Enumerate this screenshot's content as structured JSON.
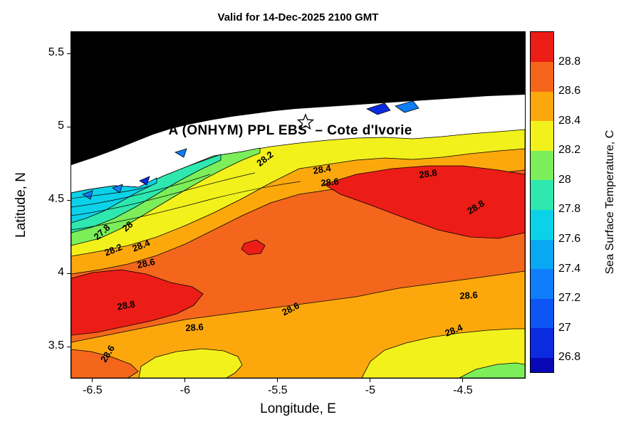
{
  "palette": {
    "land": "#000000",
    "no_data": "#ffffff",
    "band_27_0": "#0A2BE0",
    "band_27_2": "#0E7EFB",
    "band_27_6": "#0BD2E8",
    "band_27_8": "#2EE8B0",
    "band_28_0": "#7BEE5A",
    "band_28_2": "#F2F11C",
    "band_28_4": "#FCA80D",
    "band_28_6": "#F4661C",
    "band_28_8": "#EC1C17"
  },
  "chart_data": {
    "type": "heatmap",
    "variant": "filled_contour_map",
    "title": "Valid for 14-Dec-2025 2100 GMT",
    "xlabel": "Longitude, E",
    "ylabel": "Latitude, N",
    "xlim": [
      -6.615,
      -4.165
    ],
    "ylim": [
      3.287,
      5.646
    ],
    "grid": false,
    "x_ticks": [
      {
        "value": -6.5,
        "label": "-6.5"
      },
      {
        "value": -6.0,
        "label": "-6"
      },
      {
        "value": -5.5,
        "label": "-5.5"
      },
      {
        "value": -5.0,
        "label": "-5"
      },
      {
        "value": -4.5,
        "label": "-4.5"
      }
    ],
    "y_ticks": [
      {
        "value": 5.5,
        "label": "5.5"
      },
      {
        "value": 5.0,
        "label": "5"
      },
      {
        "value": 4.5,
        "label": "4.5"
      },
      {
        "value": 4.0,
        "label": "4"
      },
      {
        "value": 3.5,
        "label": "3.5"
      }
    ],
    "colorbar": {
      "label": "Sea Surface Temperature, C",
      "range": [
        26.7,
        29.0
      ],
      "ticks": [
        {
          "value": 28.8,
          "label": "28.8"
        },
        {
          "value": 28.6,
          "label": "28.6"
        },
        {
          "value": 28.4,
          "label": "28.4"
        },
        {
          "value": 28.2,
          "label": "28.2"
        },
        {
          "value": 28.0,
          "label": "28"
        },
        {
          "value": 27.8,
          "label": "27.8"
        },
        {
          "value": 27.6,
          "label": "27.6"
        },
        {
          "value": 27.4,
          "label": "27.4"
        },
        {
          "value": 27.2,
          "label": "27.2"
        },
        {
          "value": 27.0,
          "label": "27"
        },
        {
          "value": 26.8,
          "label": "26.8"
        }
      ],
      "bands": [
        {
          "from": 26.7,
          "to": 26.8,
          "color": "#0808B6"
        },
        {
          "from": 26.8,
          "to": 27.0,
          "color": "#0A2BE0"
        },
        {
          "from": 27.0,
          "to": 27.2,
          "color": "#0D55F5"
        },
        {
          "from": 27.2,
          "to": 27.4,
          "color": "#0E7EFB"
        },
        {
          "from": 27.4,
          "to": 27.6,
          "color": "#0AA7F2"
        },
        {
          "from": 27.6,
          "to": 27.8,
          "color": "#0BD2E8"
        },
        {
          "from": 27.8,
          "to": 28.0,
          "color": "#2EE8B0"
        },
        {
          "from": 28.0,
          "to": 28.2,
          "color": "#7BEE5A"
        },
        {
          "from": 28.2,
          "to": 28.4,
          "color": "#F2F11C"
        },
        {
          "from": 28.4,
          "to": 28.6,
          "color": "#FCA80D"
        },
        {
          "from": 28.6,
          "to": 28.8,
          "color": "#F4661C"
        },
        {
          "from": 28.8,
          "to": 29.0,
          "color": "#EC1C17"
        }
      ]
    },
    "contour_levels": [
      27.0,
      27.2,
      27.4,
      27.6,
      27.8,
      28.0,
      28.2,
      28.4,
      28.6,
      28.8
    ],
    "contour_labels": [
      {
        "text": "28.2",
        "lon": -5.57,
        "lat": 4.78,
        "rot": -38
      },
      {
        "text": "28.4",
        "lon": -5.26,
        "lat": 4.71,
        "rot": -10
      },
      {
        "text": "28.6",
        "lon": -5.22,
        "lat": 4.62,
        "rot": -6
      },
      {
        "text": "28.8",
        "lon": -4.69,
        "lat": 4.68,
        "rot": -8
      },
      {
        "text": "28.8",
        "lon": -4.43,
        "lat": 4.45,
        "rot": -32
      },
      {
        "text": "27.8",
        "lon": -6.45,
        "lat": 4.28,
        "rot": -42
      },
      {
        "text": "28",
        "lon": -6.31,
        "lat": 4.32,
        "rot": -42
      },
      {
        "text": "28.2",
        "lon": -6.39,
        "lat": 4.16,
        "rot": -22
      },
      {
        "text": "28.4",
        "lon": -6.24,
        "lat": 4.19,
        "rot": -22
      },
      {
        "text": "28.6",
        "lon": -6.21,
        "lat": 4.07,
        "rot": -12
      },
      {
        "text": "28.8",
        "lon": -6.32,
        "lat": 3.78,
        "rot": -10
      },
      {
        "text": "28.6",
        "lon": -5.95,
        "lat": 3.63,
        "rot": -4
      },
      {
        "text": "28.6",
        "lon": -5.43,
        "lat": 3.76,
        "rot": -27
      },
      {
        "text": "28.6",
        "lon": -4.47,
        "lat": 3.85,
        "rot": -4
      },
      {
        "text": "28.4",
        "lon": -4.55,
        "lat": 3.61,
        "rot": -22
      },
      {
        "text": "28.6",
        "lon": -6.42,
        "lat": 3.45,
        "rot": -58
      }
    ],
    "annotations": {
      "region_label": {
        "text": "A (ONHYM) PPL EBS  – Cote d'Ivorie",
        "lon": -6.09,
        "lat": 4.97
      },
      "star": {
        "lon": -5.35,
        "lat": 5.03
      }
    }
  }
}
